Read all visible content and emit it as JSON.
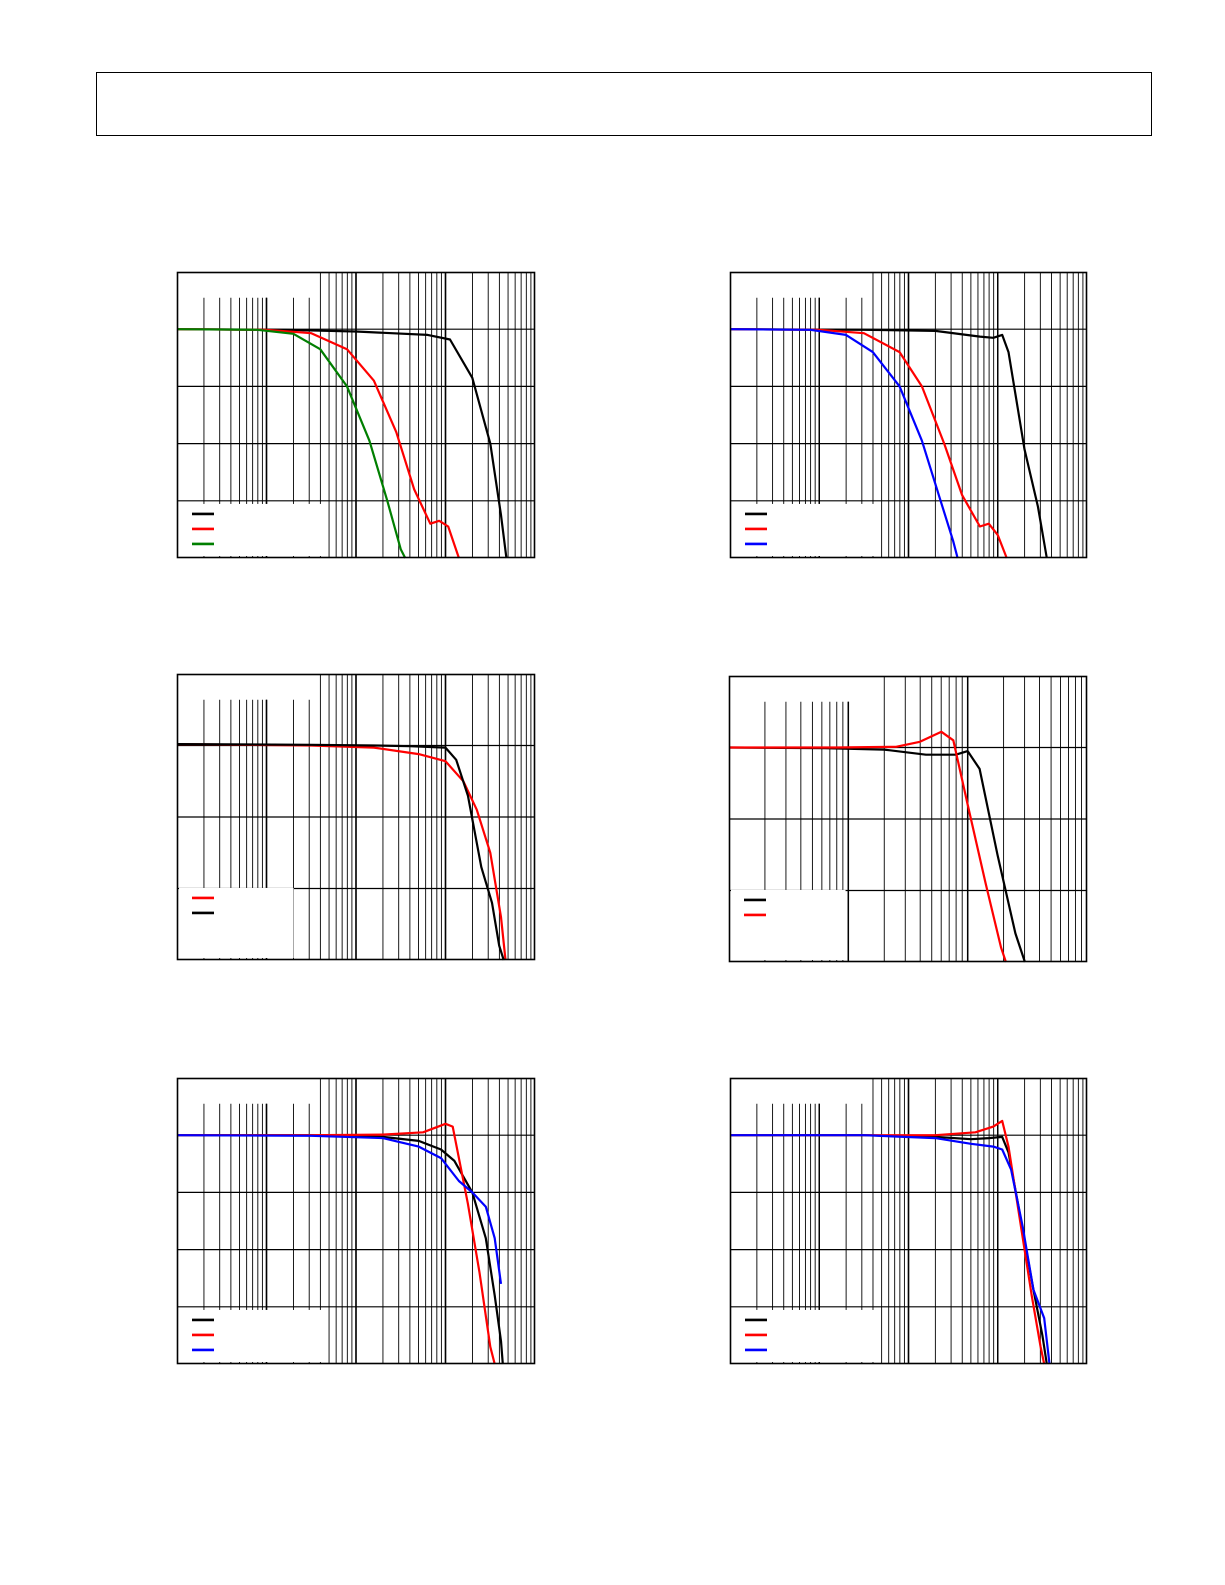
{
  "charts": [
    {
      "id": "chart-1",
      "type": "line",
      "xscale": "log",
      "xlim_decades": 4,
      "ylim": [
        0,
        5
      ],
      "gridlines_y": 5,
      "legend": {
        "position": "bottom-left",
        "bg_offset": 0.14,
        "lines": [
          {
            "color": "#000000"
          },
          {
            "color": "#ff0000"
          },
          {
            "color": "#007f00"
          }
        ]
      },
      "topleft_box": true,
      "series": [
        {
          "color": "#000000",
          "points": [
            [
              0,
              4
            ],
            [
              1.2,
              3.99
            ],
            [
              2.0,
              3.96
            ],
            [
              2.8,
              3.9
            ],
            [
              3.05,
              3.82
            ],
            [
              3.3,
              3.15
            ],
            [
              3.5,
              2.0
            ],
            [
              3.62,
              0.75
            ],
            [
              3.68,
              0
            ]
          ]
        },
        {
          "color": "#ff0000",
          "points": [
            [
              0,
              4
            ],
            [
              1.0,
              3.99
            ],
            [
              1.5,
              3.93
            ],
            [
              1.9,
              3.65
            ],
            [
              2.2,
              3.1
            ],
            [
              2.45,
              2.2
            ],
            [
              2.65,
              1.2
            ],
            [
              2.83,
              0.6
            ],
            [
              2.93,
              0.65
            ],
            [
              3.03,
              0.55
            ],
            [
              3.15,
              0
            ]
          ]
        },
        {
          "color": "#007f00",
          "points": [
            [
              0,
              4
            ],
            [
              0.9,
              3.99
            ],
            [
              1.3,
              3.92
            ],
            [
              1.6,
              3.65
            ],
            [
              1.9,
              3.0
            ],
            [
              2.15,
              2.05
            ],
            [
              2.35,
              1.0
            ],
            [
              2.5,
              0.15
            ],
            [
              2.55,
              0
            ]
          ]
        }
      ]
    },
    {
      "id": "chart-2",
      "type": "line",
      "xscale": "log",
      "xlim_decades": 4,
      "ylim": [
        0,
        5
      ],
      "gridlines_y": 5,
      "legend": {
        "position": "bottom-left",
        "bg_offset": 0.14,
        "lines": [
          {
            "color": "#000000"
          },
          {
            "color": "#ff0000"
          },
          {
            "color": "#0000ff"
          }
        ]
      },
      "topleft_box": true,
      "series": [
        {
          "color": "#000000",
          "points": [
            [
              0,
              4
            ],
            [
              1.5,
              3.99
            ],
            [
              2.3,
              3.97
            ],
            [
              2.8,
              3.87
            ],
            [
              2.95,
              3.85
            ],
            [
              3.05,
              3.9
            ],
            [
              3.12,
              3.6
            ],
            [
              3.3,
              1.9
            ],
            [
              3.45,
              0.9
            ],
            [
              3.55,
              0
            ]
          ]
        },
        {
          "color": "#ff0000",
          "points": [
            [
              0,
              4
            ],
            [
              1.0,
              3.99
            ],
            [
              1.5,
              3.93
            ],
            [
              1.9,
              3.6
            ],
            [
              2.15,
              3.0
            ],
            [
              2.4,
              2.0
            ],
            [
              2.6,
              1.1
            ],
            [
              2.8,
              0.55
            ],
            [
              2.9,
              0.6
            ],
            [
              3.0,
              0.4
            ],
            [
              3.1,
              0
            ]
          ]
        },
        {
          "color": "#0000ff",
          "points": [
            [
              0,
              4
            ],
            [
              0.9,
              3.99
            ],
            [
              1.3,
              3.9
            ],
            [
              1.6,
              3.6
            ],
            [
              1.9,
              3.0
            ],
            [
              2.15,
              2.05
            ],
            [
              2.35,
              1.05
            ],
            [
              2.5,
              0.3
            ],
            [
              2.55,
              0
            ]
          ]
        }
      ]
    },
    {
      "id": "chart-3",
      "type": "line",
      "xscale": "log",
      "xlim_decades": 4,
      "ylim": [
        0,
        4
      ],
      "gridlines_y": 4,
      "legend": {
        "position": "bottom-left",
        "bg_offset": 0.21,
        "lines": [
          {
            "color": "#ff0000"
          },
          {
            "color": "#000000"
          }
        ]
      },
      "topleft_box": true,
      "series": [
        {
          "color": "#ff0000",
          "points": [
            [
              0,
              3.02
            ],
            [
              1.5,
              3.0
            ],
            [
              2.2,
              2.97
            ],
            [
              2.7,
              2.88
            ],
            [
              3.0,
              2.78
            ],
            [
              3.2,
              2.5
            ],
            [
              3.35,
              2.1
            ],
            [
              3.5,
              1.5
            ],
            [
              3.62,
              0.6
            ],
            [
              3.67,
              0
            ]
          ]
        },
        {
          "color": "#000000",
          "points": [
            [
              0,
              3.02
            ],
            [
              1.5,
              3.01
            ],
            [
              2.2,
              3.0
            ],
            [
              2.6,
              2.99
            ],
            [
              3.0,
              2.97
            ],
            [
              3.12,
              2.8
            ],
            [
              3.25,
              2.3
            ],
            [
              3.4,
              1.3
            ],
            [
              3.52,
              0.8
            ],
            [
              3.6,
              0.2
            ],
            [
              3.65,
              0
            ]
          ]
        }
      ]
    },
    {
      "id": "chart-4",
      "type": "line",
      "xscale": "log",
      "xlim_decades": 3,
      "ylim": [
        0,
        4
      ],
      "gridlines_y": 4,
      "legend": {
        "position": "bottom-left",
        "bg_offset": 0.21,
        "lines": [
          {
            "color": "#000000"
          },
          {
            "color": "#ff0000"
          }
        ]
      },
      "topleft_box": true,
      "series": [
        {
          "color": "#000000",
          "points": [
            [
              0,
              3.0
            ],
            [
              0.8,
              2.99
            ],
            [
              1.3,
              2.97
            ],
            [
              1.65,
              2.9
            ],
            [
              1.9,
              2.9
            ],
            [
              2.0,
              2.95
            ],
            [
              2.1,
              2.7
            ],
            [
              2.25,
              1.5
            ],
            [
              2.4,
              0.4
            ],
            [
              2.48,
              0
            ]
          ]
        },
        {
          "color": "#ff0000",
          "points": [
            [
              0,
              3.0
            ],
            [
              0.9,
              3.0
            ],
            [
              1.4,
              3.01
            ],
            [
              1.6,
              3.08
            ],
            [
              1.78,
              3.22
            ],
            [
              1.88,
              3.1
            ],
            [
              2.0,
              2.2
            ],
            [
              2.15,
              1.1
            ],
            [
              2.28,
              0.2
            ],
            [
              2.32,
              0
            ]
          ]
        }
      ]
    },
    {
      "id": "chart-5",
      "type": "line",
      "xscale": "log",
      "xlim_decades": 4,
      "ylim": [
        0,
        5
      ],
      "gridlines_y": 5,
      "legend": {
        "position": "bottom-left",
        "bg_offset": 0.14,
        "lines": [
          {
            "color": "#000000"
          },
          {
            "color": "#ff0000"
          },
          {
            "color": "#0000ff"
          }
        ]
      },
      "topleft_box": true,
      "series": [
        {
          "color": "#000000",
          "points": [
            [
              0,
              4
            ],
            [
              1.5,
              4.0
            ],
            [
              2.3,
              3.97
            ],
            [
              2.7,
              3.9
            ],
            [
              2.95,
              3.75
            ],
            [
              3.1,
              3.55
            ],
            [
              3.3,
              3.0
            ],
            [
              3.45,
              2.2
            ],
            [
              3.55,
              1.2
            ],
            [
              3.62,
              0.4
            ],
            [
              3.64,
              0
            ]
          ]
        },
        {
          "color": "#ff0000",
          "points": [
            [
              0,
              4
            ],
            [
              1.5,
              4.0
            ],
            [
              2.3,
              4.01
            ],
            [
              2.75,
              4.05
            ],
            [
              3.0,
              4.2
            ],
            [
              3.08,
              4.15
            ],
            [
              3.15,
              3.6
            ],
            [
              3.25,
              2.8
            ],
            [
              3.38,
              1.6
            ],
            [
              3.5,
              0.3
            ],
            [
              3.55,
              0
            ]
          ]
        },
        {
          "color": "#0000ff",
          "points": [
            [
              0,
              4
            ],
            [
              1.5,
              3.99
            ],
            [
              2.3,
              3.95
            ],
            [
              2.7,
              3.8
            ],
            [
              2.95,
              3.6
            ],
            [
              3.15,
              3.2
            ],
            [
              3.3,
              3.0
            ],
            [
              3.45,
              2.75
            ],
            [
              3.55,
              2.2
            ],
            [
              3.62,
              1.4
            ]
          ]
        }
      ]
    },
    {
      "id": "chart-6",
      "type": "line",
      "xscale": "log",
      "xlim_decades": 4,
      "ylim": [
        0,
        5
      ],
      "gridlines_y": 5,
      "legend": {
        "position": "bottom-left",
        "bg_offset": 0.14,
        "lines": [
          {
            "color": "#000000"
          },
          {
            "color": "#ff0000"
          },
          {
            "color": "#0000ff"
          }
        ]
      },
      "topleft_box": true,
      "series": [
        {
          "color": "#000000",
          "points": [
            [
              0,
              4
            ],
            [
              1.5,
              4.0
            ],
            [
              2.3,
              3.97
            ],
            [
              2.7,
              3.93
            ],
            [
              2.9,
              3.95
            ],
            [
              3.05,
              3.97
            ],
            [
              3.12,
              3.7
            ],
            [
              3.25,
              2.6
            ],
            [
              3.4,
              1.3
            ],
            [
              3.5,
              0.5
            ],
            [
              3.55,
              0
            ]
          ]
        },
        {
          "color": "#ff0000",
          "points": [
            [
              0,
              4
            ],
            [
              1.5,
              4.0
            ],
            [
              2.3,
              4.0
            ],
            [
              2.75,
              4.05
            ],
            [
              2.95,
              4.15
            ],
            [
              3.05,
              4.25
            ],
            [
              3.12,
              3.8
            ],
            [
              3.25,
              2.5
            ],
            [
              3.38,
              1.2
            ],
            [
              3.48,
              0.3
            ],
            [
              3.52,
              0
            ]
          ]
        },
        {
          "color": "#0000ff",
          "points": [
            [
              0,
              4
            ],
            [
              1.5,
              4.0
            ],
            [
              2.3,
              3.95
            ],
            [
              2.7,
              3.85
            ],
            [
              2.95,
              3.8
            ],
            [
              3.05,
              3.75
            ],
            [
              3.15,
              3.4
            ],
            [
              3.28,
              2.4
            ],
            [
              3.4,
              1.3
            ],
            [
              3.52,
              0.8
            ],
            [
              3.58,
              0
            ]
          ]
        }
      ]
    }
  ]
}
